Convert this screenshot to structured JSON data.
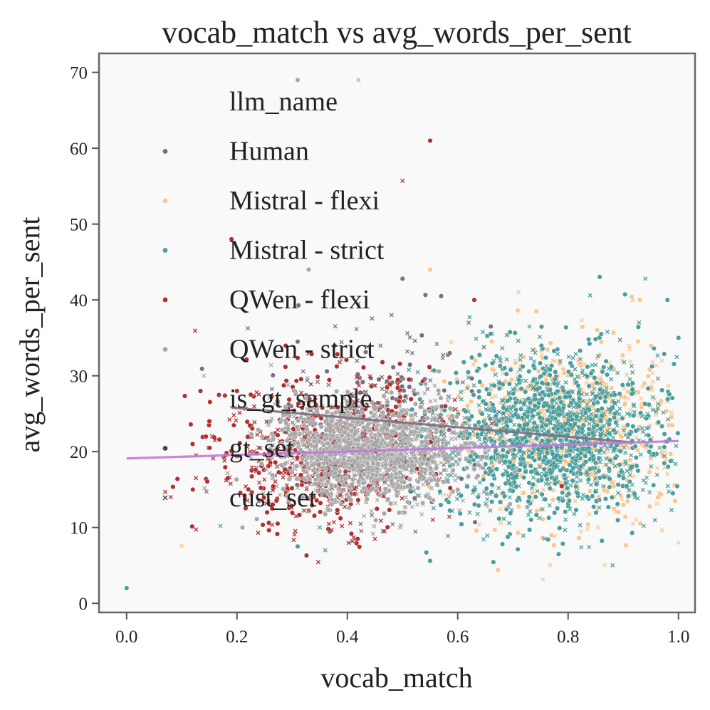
{
  "chart_data": {
    "type": "scatter",
    "title": "vocab_match vs avg_words_per_sent",
    "xlabel": "vocab_match",
    "ylabel": "avg_words_per_sent",
    "xlim": [
      -0.05,
      1.03
    ],
    "ylim": [
      -1.2,
      72.5
    ],
    "xticks": [
      0.0,
      0.2,
      0.4,
      0.6,
      0.8,
      1.0
    ],
    "xtick_labels": [
      "0.0",
      "0.2",
      "0.4",
      "0.6",
      "0.8",
      "1.0"
    ],
    "yticks": [
      0,
      10,
      20,
      30,
      40,
      50,
      60,
      70
    ],
    "ytick_labels": [
      "0",
      "10",
      "20",
      "30",
      "40",
      "50",
      "60",
      "70"
    ],
    "grid": false,
    "background": "#f9f9f9",
    "legend": {
      "placement": "upper-left",
      "sections": [
        {
          "title": "llm_name",
          "entries": [
            {
              "label": "Human",
              "color": "#7d6e7e"
            },
            {
              "label": "Mistral - flexi",
              "color": "#fdc68a"
            },
            {
              "label": "Mistral - strict",
              "color": "#4a9e9e"
            },
            {
              "label": "QWen - flexi",
              "color": "#b03030"
            },
            {
              "label": "QWen - strict",
              "color": "#a8a8a8"
            }
          ]
        },
        {
          "title": "is_gt_sample",
          "entries": [
            {
              "label": "gt_set",
              "marker": "circle",
              "color": "#444444"
            },
            {
              "label": "cust_set",
              "marker": "x",
              "color": "#444444"
            }
          ]
        }
      ]
    },
    "series": [
      {
        "name": "Human",
        "color": "#7d6e7e",
        "cluster": {
          "x_mean": 0.45,
          "x_sd": 0.09,
          "y_mean": 24,
          "y_sd": 6,
          "n": 260
        },
        "outliers": [
          [
            0.5,
            42.8
          ],
          [
            0.42,
            39.5
          ],
          [
            0.57,
            40.5
          ],
          [
            0.48,
            38
          ],
          [
            0.31,
            34.5
          ],
          [
            0.62,
            37
          ],
          [
            0.66,
            36.5
          ]
        ]
      },
      {
        "name": "Mistral - flexi",
        "color": "#fdc68a",
        "cluster": {
          "x_mean": 0.8,
          "x_sd": 0.1,
          "y_mean": 22,
          "y_sd": 6,
          "n": 700
        },
        "outliers": [
          [
            0.55,
            44
          ],
          [
            0.71,
            41
          ],
          [
            0.93,
            40
          ],
          [
            0.1,
            7.6
          ],
          [
            0.77,
            9
          ],
          [
            1.0,
            8
          ],
          [
            0.9,
            13
          ],
          [
            0.97,
            32
          ]
        ]
      },
      {
        "name": "Mistral - strict",
        "color": "#4a9e9e",
        "cluster": {
          "x_mean": 0.77,
          "x_sd": 0.1,
          "y_mean": 22,
          "y_sd": 5.5,
          "n": 1400
        },
        "outliers": [
          [
            0.0,
            2
          ],
          [
            0.94,
            42.8
          ],
          [
            0.98,
            40
          ],
          [
            0.84,
            40.6
          ],
          [
            0.55,
            5.6
          ],
          [
            0.36,
            7
          ],
          [
            0.31,
            7.5
          ],
          [
            0.17,
            10.2
          ],
          [
            1.0,
            35
          ],
          [
            0.73,
            36.5
          ],
          [
            0.86,
            35.5
          ],
          [
            0.35,
            10
          ]
        ]
      },
      {
        "name": "QWen - flexi",
        "color": "#b03030",
        "cluster": {
          "x_mean": 0.36,
          "x_sd": 0.1,
          "y_mean": 20,
          "y_sd": 5,
          "n": 650
        },
        "outliers": [
          [
            0.55,
            61
          ],
          [
            0.5,
            55.7
          ],
          [
            0.19,
            48
          ],
          [
            0.07,
            14.7
          ],
          [
            0.12,
            15
          ],
          [
            0.08,
            14
          ],
          [
            0.63,
            40
          ],
          [
            0.45,
            8.5
          ],
          [
            0.15,
            24
          ],
          [
            0.16,
            21.5
          ],
          [
            0.2,
            28
          ]
        ]
      },
      {
        "name": "QWen - strict",
        "color": "#a8a8a8",
        "cluster": {
          "x_mean": 0.44,
          "x_sd": 0.09,
          "y_mean": 20,
          "y_sd": 3.2,
          "n": 1500
        },
        "outliers": [
          [
            0.31,
            69
          ],
          [
            0.42,
            69
          ],
          [
            0.21,
            10
          ],
          [
            0.14,
            30
          ],
          [
            0.33,
            44
          ]
        ]
      }
    ],
    "regression_lines": [
      {
        "series": "Human",
        "color": "#7d6e7e",
        "x": [
          0.19,
          0.92
        ],
        "y": [
          25.8,
          21.2
        ]
      },
      {
        "series": "QWen - flexi / Mistral - strict",
        "color": "#c378de",
        "x": [
          0.0,
          1.0
        ],
        "y": [
          19.1,
          21.4
        ]
      }
    ]
  }
}
